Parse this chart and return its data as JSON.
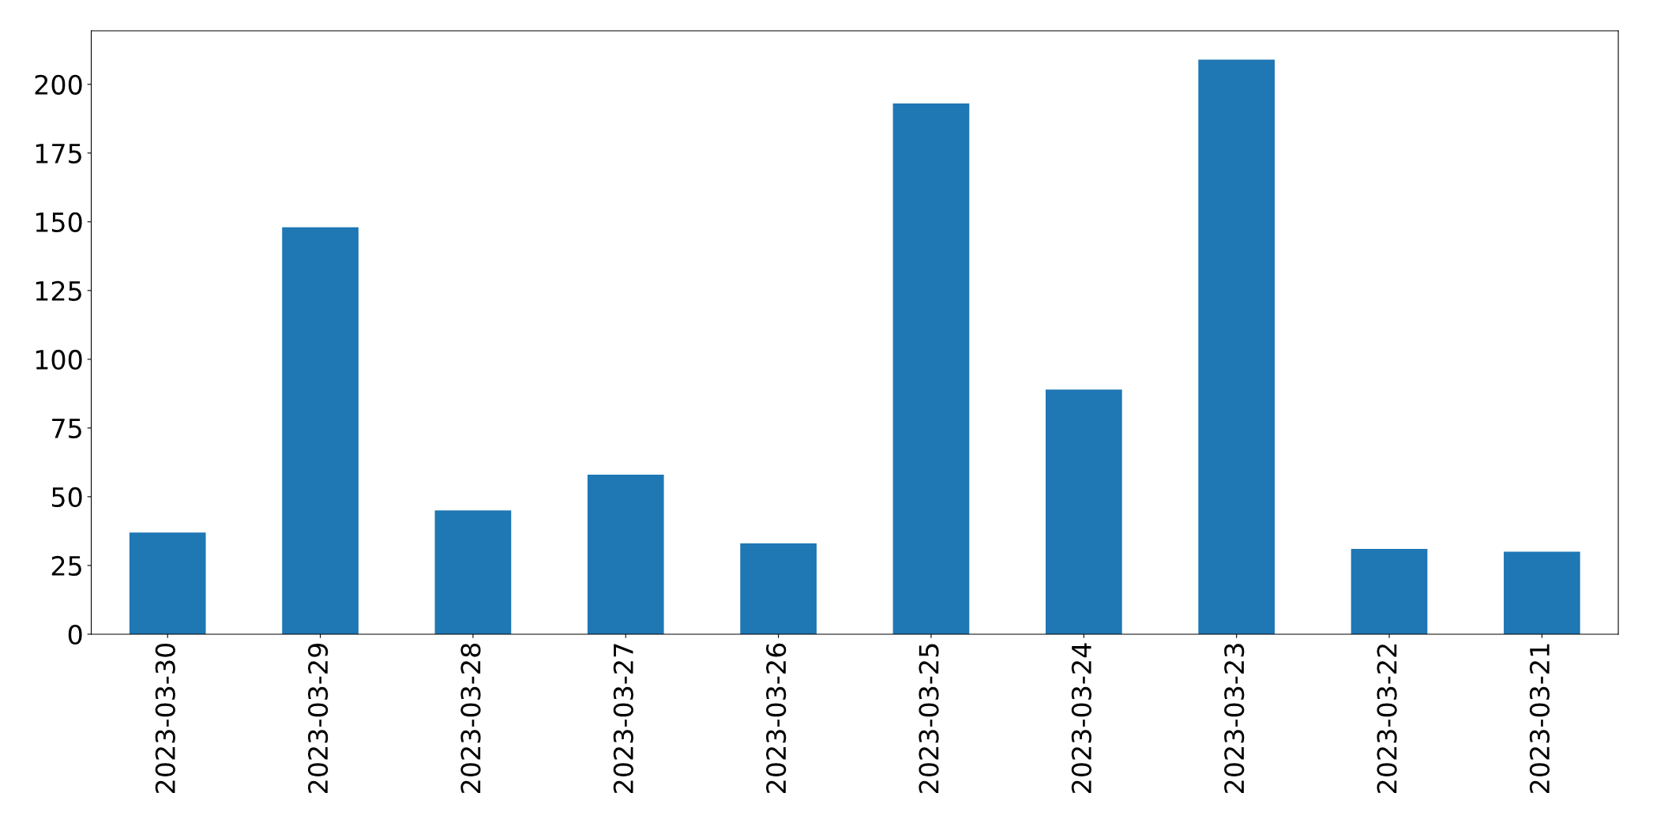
{
  "chart_data": {
    "type": "bar",
    "categories": [
      "2023-03-30",
      "2023-03-29",
      "2023-03-28",
      "2023-03-27",
      "2023-03-26",
      "2023-03-25",
      "2023-03-24",
      "2023-03-23",
      "2023-03-22",
      "2023-03-21"
    ],
    "values": [
      37,
      148,
      45,
      58,
      33,
      193,
      89,
      209,
      31,
      30
    ],
    "color": "#1f77b4",
    "ylim": [
      0,
      219.45
    ],
    "yticks": [
      0,
      25,
      50,
      75,
      100,
      125,
      150,
      175,
      200
    ],
    "grid": false
  }
}
